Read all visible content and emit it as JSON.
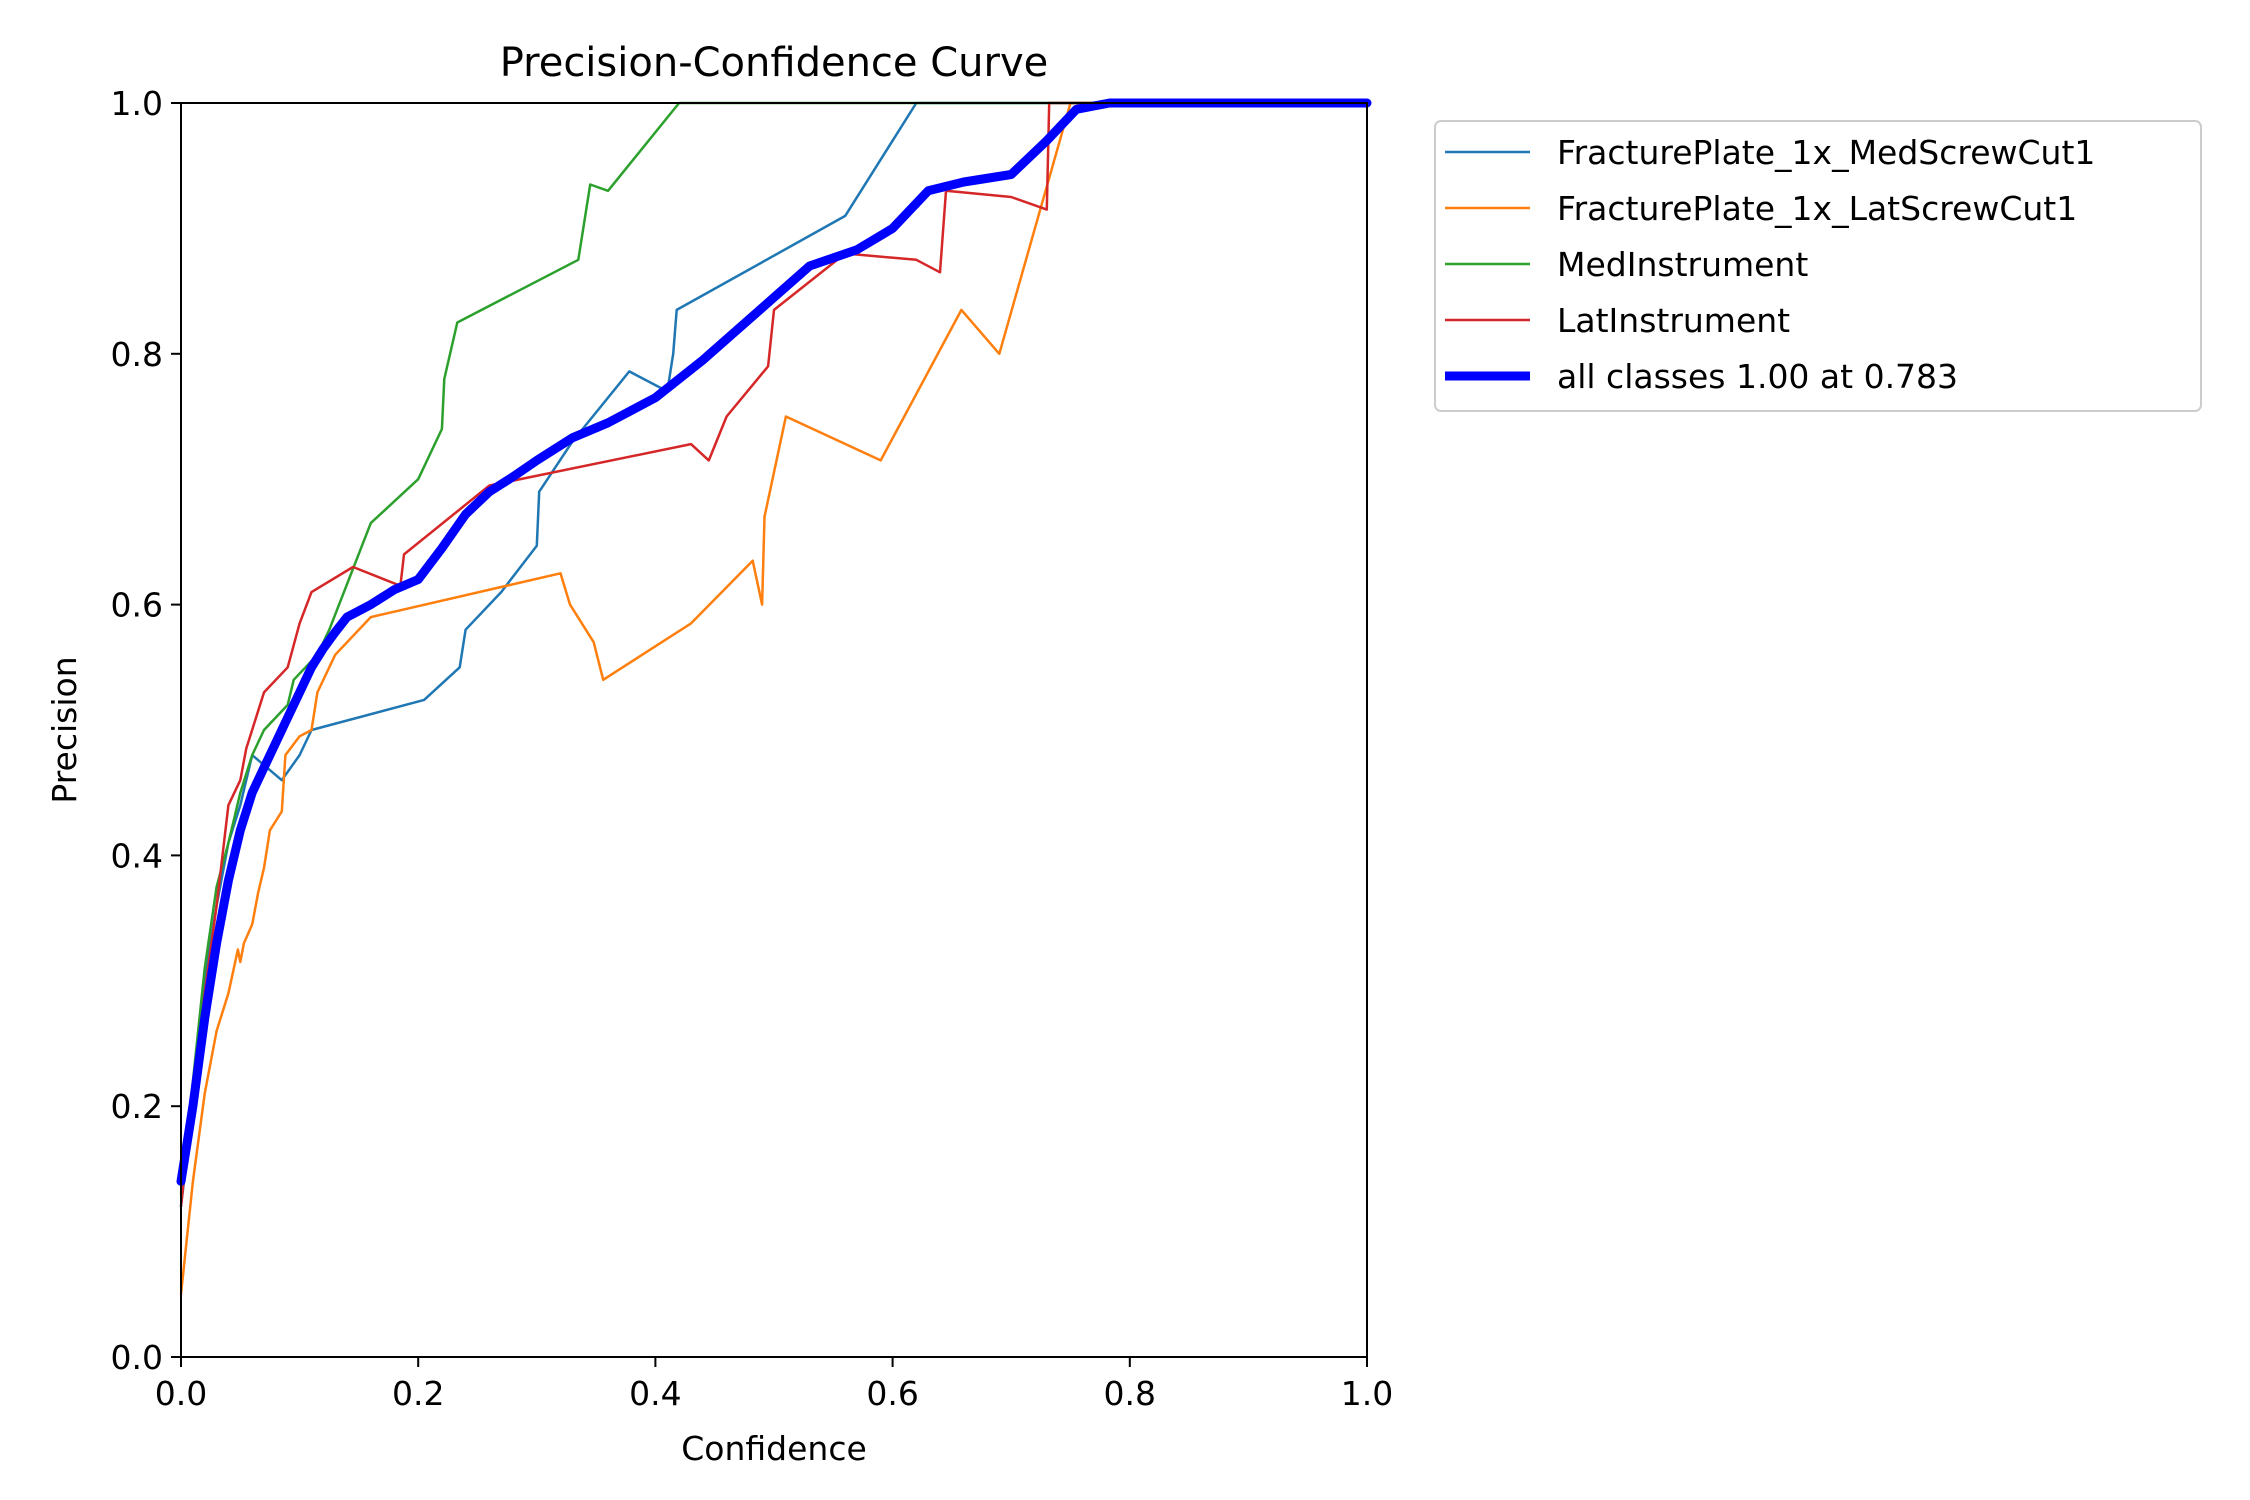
{
  "chart_data": {
    "type": "line",
    "title": "Precision-Confidence Curve",
    "xlabel": "Confidence",
    "ylabel": "Precision",
    "xlim": [
      0,
      1
    ],
    "ylim": [
      0,
      1
    ],
    "xticks": [
      "0.0",
      "0.2",
      "0.4",
      "0.6",
      "0.8",
      "1.0"
    ],
    "yticks": [
      "0.0",
      "0.2",
      "0.4",
      "0.6",
      "0.8",
      "1.0"
    ],
    "grid": false,
    "legend_position": "outside-upper-right",
    "series": [
      {
        "name": "FracturePlate_1x_MedScrewCut1",
        "color": "#1f77b4",
        "emphasis": false,
        "x": [
          0.0,
          0.01,
          0.02,
          0.03,
          0.04,
          0.05,
          0.06,
          0.085,
          0.1,
          0.11,
          0.205,
          0.235,
          0.24,
          0.27,
          0.3,
          0.302,
          0.33,
          0.378,
          0.41,
          0.415,
          0.418,
          0.56,
          0.62,
          0.8,
          1.0
        ],
        "y": [
          0.12,
          0.2,
          0.3,
          0.36,
          0.41,
          0.44,
          0.48,
          0.46,
          0.48,
          0.5,
          0.524,
          0.55,
          0.58,
          0.61,
          0.647,
          0.69,
          0.73,
          0.786,
          0.77,
          0.8,
          0.835,
          0.91,
          1.0,
          1.0,
          1.0
        ]
      },
      {
        "name": "FracturePlate_1x_LatScrewCut1",
        "color": "#ff7f0e",
        "emphasis": false,
        "x": [
          0.0,
          0.01,
          0.02,
          0.03,
          0.04,
          0.048,
          0.05,
          0.053,
          0.06,
          0.065,
          0.07,
          0.075,
          0.085,
          0.088,
          0.1,
          0.11,
          0.115,
          0.13,
          0.16,
          0.32,
          0.328,
          0.348,
          0.356,
          0.43,
          0.482,
          0.49,
          0.492,
          0.51,
          0.59,
          0.658,
          0.69,
          0.75,
          0.8,
          1.0
        ],
        "y": [
          0.05,
          0.14,
          0.21,
          0.26,
          0.29,
          0.325,
          0.315,
          0.33,
          0.345,
          0.37,
          0.39,
          0.42,
          0.435,
          0.48,
          0.495,
          0.5,
          0.53,
          0.56,
          0.59,
          0.625,
          0.6,
          0.57,
          0.54,
          0.585,
          0.635,
          0.6,
          0.67,
          0.75,
          0.715,
          0.835,
          0.8,
          1.0,
          1.0,
          1.0
        ]
      },
      {
        "name": "MedInstrument",
        "color": "#2ca02c",
        "emphasis": false,
        "x": [
          0.0,
          0.01,
          0.02,
          0.03,
          0.04,
          0.05,
          0.06,
          0.07,
          0.09,
          0.095,
          0.115,
          0.125,
          0.16,
          0.2,
          0.22,
          0.222,
          0.233,
          0.335,
          0.345,
          0.36,
          0.42,
          0.8,
          1.0
        ],
        "y": [
          0.13,
          0.22,
          0.31,
          0.375,
          0.41,
          0.45,
          0.48,
          0.5,
          0.52,
          0.54,
          0.56,
          0.58,
          0.665,
          0.7,
          0.74,
          0.78,
          0.825,
          0.875,
          0.935,
          0.93,
          1.0,
          1.0,
          1.0
        ]
      },
      {
        "name": "LatInstrument",
        "color": "#d62728",
        "emphasis": false,
        "x": [
          0.0,
          0.01,
          0.02,
          0.03,
          0.04,
          0.05,
          0.055,
          0.07,
          0.09,
          0.1,
          0.11,
          0.145,
          0.185,
          0.188,
          0.26,
          0.43,
          0.445,
          0.46,
          0.495,
          0.5,
          0.56,
          0.62,
          0.64,
          0.645,
          0.7,
          0.73,
          0.732,
          0.8,
          1.0
        ],
        "y": [
          0.12,
          0.21,
          0.29,
          0.36,
          0.44,
          0.46,
          0.485,
          0.53,
          0.55,
          0.585,
          0.61,
          0.63,
          0.615,
          0.64,
          0.695,
          0.728,
          0.715,
          0.75,
          0.79,
          0.835,
          0.88,
          0.875,
          0.865,
          0.93,
          0.925,
          0.915,
          1.0,
          1.0,
          1.0
        ]
      },
      {
        "name": "all classes 1.00 at 0.783",
        "color": "#0000ff",
        "emphasis": true,
        "x": [
          0.0,
          0.01,
          0.02,
          0.03,
          0.04,
          0.05,
          0.06,
          0.07,
          0.08,
          0.09,
          0.1,
          0.11,
          0.12,
          0.13,
          0.14,
          0.16,
          0.18,
          0.2,
          0.22,
          0.24,
          0.26,
          0.28,
          0.3,
          0.33,
          0.36,
          0.4,
          0.44,
          0.47,
          0.5,
          0.53,
          0.57,
          0.6,
          0.63,
          0.66,
          0.7,
          0.73,
          0.755,
          0.783,
          0.8,
          1.0
        ],
        "y": [
          0.14,
          0.2,
          0.27,
          0.33,
          0.38,
          0.42,
          0.45,
          0.47,
          0.49,
          0.51,
          0.53,
          0.55,
          0.565,
          0.578,
          0.59,
          0.6,
          0.612,
          0.62,
          0.645,
          0.672,
          0.69,
          0.702,
          0.715,
          0.733,
          0.745,
          0.765,
          0.795,
          0.82,
          0.845,
          0.87,
          0.883,
          0.9,
          0.93,
          0.937,
          0.943,
          0.97,
          0.995,
          1.0,
          1.0,
          1.0
        ]
      }
    ]
  }
}
